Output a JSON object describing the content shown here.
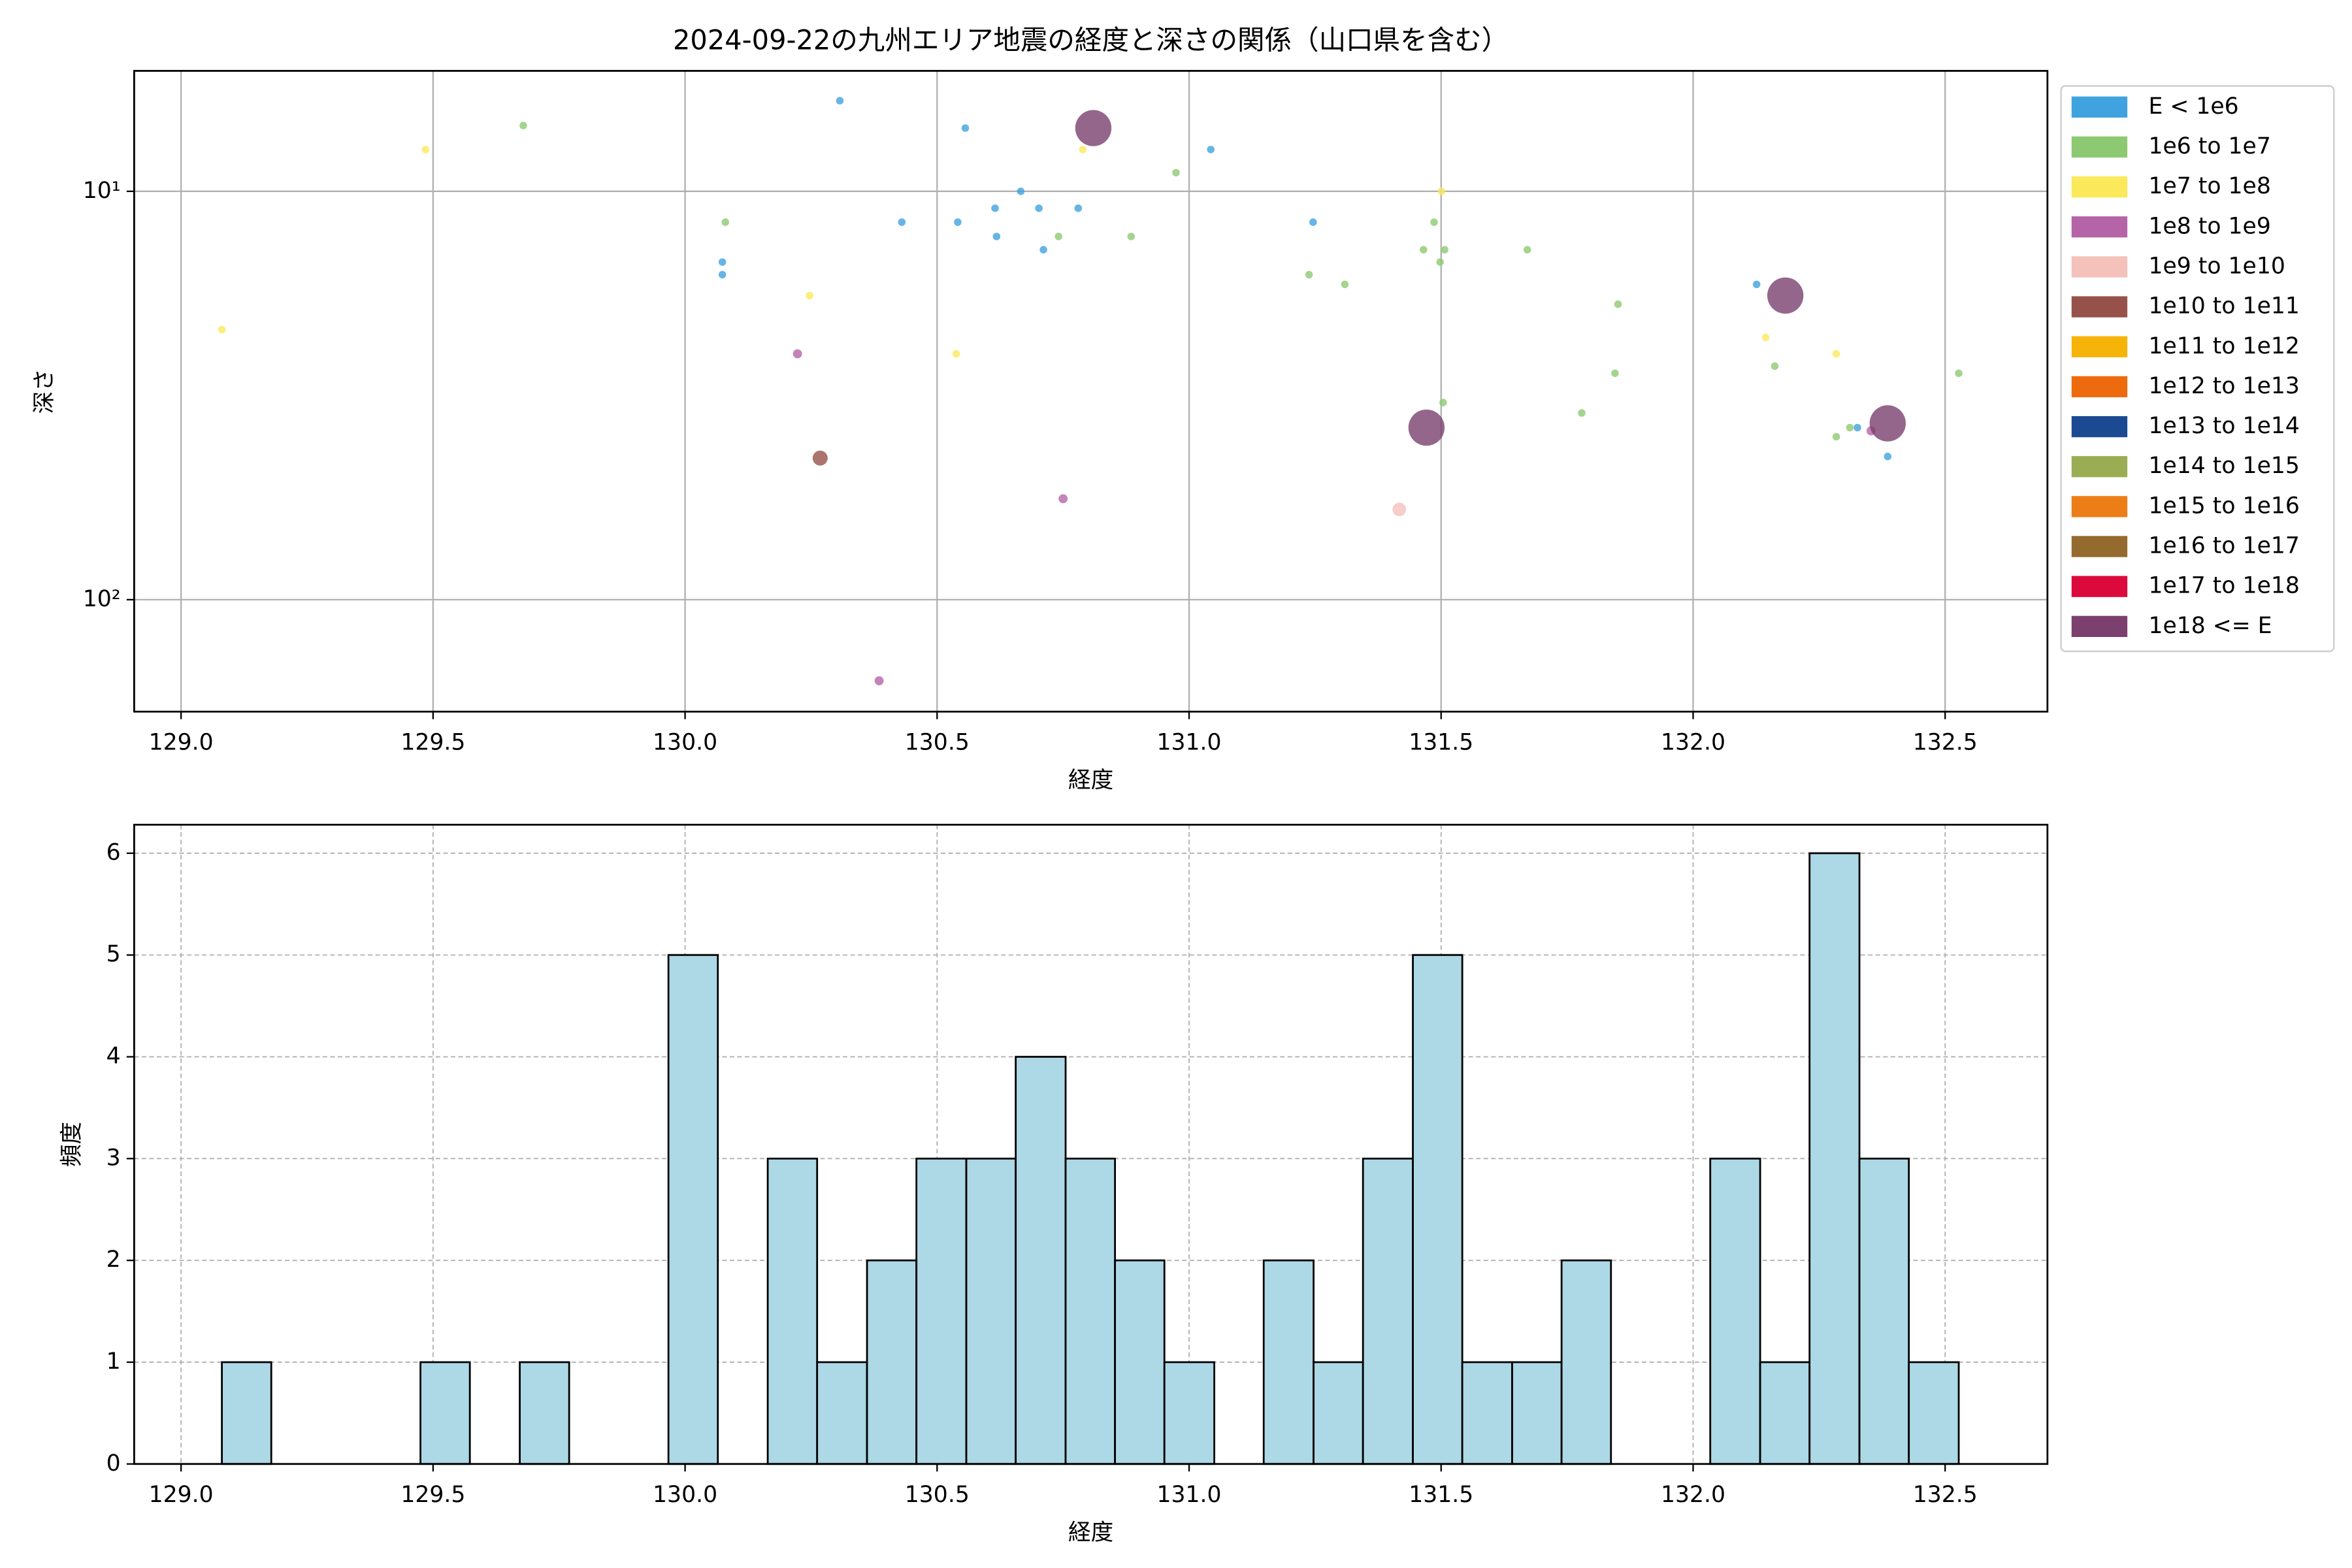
{
  "chart_data": [
    {
      "type": "scatter",
      "title": "2024-09-22の九州エリア地震の経度と深さの関係（山口県を含む）",
      "x_label": "経度",
      "y_label": "深さ",
      "log_y": true,
      "grid": true,
      "legend": "outside right",
      "xlim": [
        128.907,
        132.703
      ],
      "ylim": [
        188,
        5.07
      ],
      "xticks": [
        {
          "value": 129.0,
          "label": "129.0"
        },
        {
          "value": 129.5,
          "label": "129.5"
        },
        {
          "value": 130.0,
          "label": "130.0"
        },
        {
          "value": 130.5,
          "label": "130.5"
        },
        {
          "value": 131.0,
          "label": "131.0"
        },
        {
          "value": 131.5,
          "label": "131.5"
        },
        {
          "value": 132.0,
          "label": "132.0"
        },
        {
          "value": 132.5,
          "label": "132.5"
        }
      ],
      "yticks": [
        {
          "value": 10,
          "label": "10¹"
        },
        {
          "value": 100,
          "label": "10²"
        }
      ],
      "series": [
        {
          "name": "E < 1e6",
          "color": "#3ea3de",
          "marker_size": 2.5,
          "x": [
            130.307,
            130.556,
            130.074,
            130.074,
            130.43,
            130.541,
            130.615,
            130.618,
            130.666,
            130.702,
            130.78,
            130.711,
            131.043,
            131.246,
            132.126,
            132.326,
            132.386
          ],
          "values": [
            6.0,
            7.0,
            14.9,
            16.0,
            11.9,
            11.9,
            11.0,
            12.9,
            10.0,
            11.0,
            11.0,
            13.9,
            7.9,
            11.9,
            16.9,
            37.9,
            44.6
          ]
        },
        {
          "name": "1e6 to 1e7",
          "color": "#8dc971",
          "marker_size": 2.5,
          "x": [
            129.679,
            130.08,
            130.741,
            130.885,
            130.974,
            131.238,
            131.309,
            131.465,
            131.486,
            131.507,
            131.498,
            131.504,
            131.671,
            131.851,
            131.845,
            131.779,
            132.162,
            132.284,
            132.311,
            132.527
          ],
          "values": [
            6.9,
            11.9,
            12.9,
            12.9,
            9.0,
            16.0,
            16.9,
            13.9,
            11.9,
            13.9,
            14.9,
            32.9,
            13.9,
            18.9,
            27.9,
            34.9,
            26.8,
            39.9,
            37.9,
            27.9
          ]
        },
        {
          "name": "1e7 to 1e8",
          "color": "#fbe85b",
          "marker_size": 2.5,
          "x": [
            129.485,
            129.081,
            130.789,
            130.247,
            130.538,
            131.501,
            132.144,
            132.284
          ],
          "values": [
            7.9,
            21.8,
            7.9,
            18.0,
            25.0,
            10.0,
            22.8,
            25.0
          ]
        },
        {
          "name": "1e8 to 1e9",
          "color": "#b564a8",
          "marker_size": 3,
          "x": [
            130.223,
            130.75,
            130.385,
            132.353
          ],
          "values": [
            25.0,
            56.6,
            158,
            38.6
          ]
        },
        {
          "name": "1e9 to 1e10",
          "color": "#f5c1bb",
          "marker_size": 4.5,
          "x": [
            131.417
          ],
          "values": [
            60.1
          ]
        },
        {
          "name": "1e10 to 1e11",
          "color": "#96524a",
          "marker_size": 5,
          "x": [
            130.268
          ],
          "values": [
            45.0
          ]
        },
        {
          "name": "1e11 to 1e12",
          "color": "#f6b408",
          "marker_size": 5,
          "x": [],
          "values": []
        },
        {
          "name": "1e12 to 1e13",
          "color": "#ee6a0e",
          "marker_size": 5,
          "x": [],
          "values": []
        },
        {
          "name": "1e13 to 1e14",
          "color": "#1c4a92",
          "marker_size": 5,
          "x": [],
          "values": []
        },
        {
          "name": "1e14 to 1e15",
          "color": "#9aad52",
          "marker_size": 5,
          "x": [],
          "values": []
        },
        {
          "name": "1e15 to 1e16",
          "color": "#ed7d17",
          "marker_size": 5,
          "x": [],
          "values": []
        },
        {
          "name": "1e16 to 1e17",
          "color": "#946a2e",
          "marker_size": 5,
          "x": [],
          "values": []
        },
        {
          "name": "1e17 to 1e18",
          "color": "#dc0a3c",
          "marker_size": 5,
          "x": [],
          "values": []
        },
        {
          "name": "1e18 <= E",
          "color": "#7b406e",
          "marker_size": 12,
          "x": [
            130.81,
            132.183,
            131.471,
            132.386
          ],
          "values": [
            7.0,
            18.0,
            37.9,
            37.0
          ]
        }
      ]
    },
    {
      "type": "histogram",
      "x_label": "経度",
      "y_label": "頻度",
      "grid": true,
      "color": "#add8e6",
      "xlim": [
        128.907,
        132.703
      ],
      "ylim": [
        0,
        6.28
      ],
      "xticks": [
        {
          "value": 129.0,
          "label": "129.0"
        },
        {
          "value": 129.5,
          "label": "129.5"
        },
        {
          "value": 130.0,
          "label": "130.0"
        },
        {
          "value": 130.5,
          "label": "130.5"
        },
        {
          "value": 131.0,
          "label": "131.0"
        },
        {
          "value": 131.5,
          "label": "131.5"
        },
        {
          "value": 132.0,
          "label": "132.0"
        },
        {
          "value": 132.5,
          "label": "132.5"
        }
      ],
      "yticks": [
        0,
        1,
        2,
        3,
        4,
        5,
        6
      ],
      "bins": [
        129.081,
        129.179,
        129.278,
        129.376,
        129.475,
        129.573,
        129.672,
        129.77,
        129.869,
        129.967,
        130.065,
        130.164,
        130.262,
        130.361,
        130.459,
        130.558,
        130.656,
        130.755,
        130.853,
        130.951,
        131.05,
        131.148,
        131.247,
        131.345,
        131.444,
        131.542,
        131.641,
        131.739,
        131.837,
        131.936,
        132.034,
        132.133,
        132.231,
        132.33,
        132.428,
        132.527
      ],
      "values": [
        1,
        0,
        0,
        0,
        1,
        0,
        1,
        0,
        0,
        5,
        0,
        3,
        1,
        2,
        3,
        3,
        4,
        3,
        2,
        1,
        0,
        2,
        1,
        3,
        5,
        1,
        1,
        2,
        0,
        0,
        3,
        1,
        6,
        3,
        1
      ]
    }
  ]
}
